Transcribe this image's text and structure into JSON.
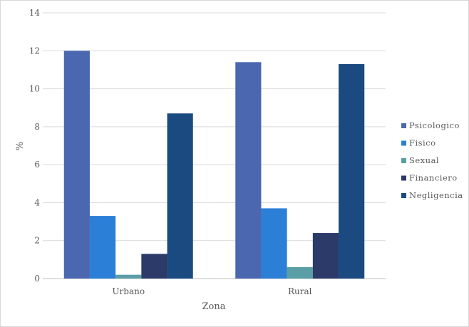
{
  "chart_data": {
    "type": "bar",
    "title": "",
    "xlabel": "Zona",
    "ylabel": "%",
    "ylim": [
      0,
      14
    ],
    "yticks": [
      0,
      2,
      4,
      6,
      8,
      10,
      12,
      14
    ],
    "grid": true,
    "legend_position": "right",
    "categories": [
      "Urbano",
      "Rural"
    ],
    "series": [
      {
        "name": "Psicologico",
        "color": "#4a67b0",
        "values": [
          12.0,
          11.4
        ]
      },
      {
        "name": "Fisico",
        "color": "#2b7fd6",
        "values": [
          3.3,
          3.7
        ]
      },
      {
        "name": "Sexual",
        "color": "#5a9ea6",
        "values": [
          0.2,
          0.6
        ]
      },
      {
        "name": "Financiero",
        "color": "#2b3a68",
        "values": [
          1.3,
          2.4
        ]
      },
      {
        "name": "Negligencia",
        "color": "#1b4a80",
        "values": [
          8.7,
          11.3
        ]
      }
    ]
  }
}
